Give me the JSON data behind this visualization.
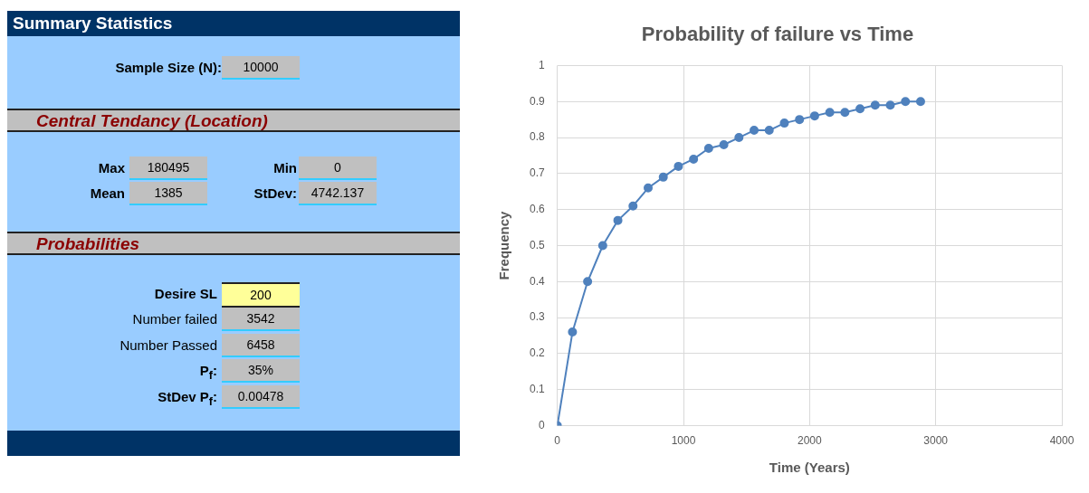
{
  "chart_data": [
    {
      "type": "other",
      "title": "Summary Statistics",
      "annotations": [
        "Sample Size (N):",
        "10000",
        "Central Tendancy (Location)",
        "Max",
        "180495",
        "Min",
        "0",
        "Mean",
        "1385",
        "StDev:",
        "4742.137",
        "Probabilities",
        "Desire SL",
        "200",
        "Number failed",
        "3542",
        "Number Passed",
        "6458",
        "P$_{f}$:",
        "35%",
        "StDev P$_{f}$:",
        "0.00478"
      ]
    },
    {
      "type": "line",
      "title": "Probability of failure vs Time",
      "xlabel": "Time (Years)",
      "ylabel": "Frequency",
      "x": [
        0,
        120,
        240,
        360,
        480,
        600,
        720,
        840,
        960,
        1080,
        1200,
        1320,
        1440,
        1560,
        1680,
        1800,
        1920,
        2040,
        2160,
        2280,
        2400,
        2520,
        2640,
        2760,
        2880
      ],
      "series": [
        {
          "color": "#4f81bd",
          "values": [
            0,
            0.26,
            0.4,
            0.5,
            0.57,
            0.61,
            0.66,
            0.69,
            0.72,
            0.74,
            0.77,
            0.78,
            0.8,
            0.82,
            0.82,
            0.84,
            0.85,
            0.86,
            0.87,
            0.87,
            0.88,
            0.89,
            0.89,
            0.9,
            0.9
          ]
        }
      ],
      "xlim": [
        0,
        4000
      ],
      "xticks": [
        0,
        1000,
        2000,
        3000,
        4000
      ],
      "ylim": [
        0,
        1
      ],
      "yticks": [
        0,
        0.1,
        0.2,
        0.3,
        0.4,
        0.5,
        0.6,
        0.7,
        0.8,
        0.9,
        1
      ],
      "grid": true,
      "legend": false,
      "marker": "circle",
      "line_style": "solid"
    }
  ]
}
